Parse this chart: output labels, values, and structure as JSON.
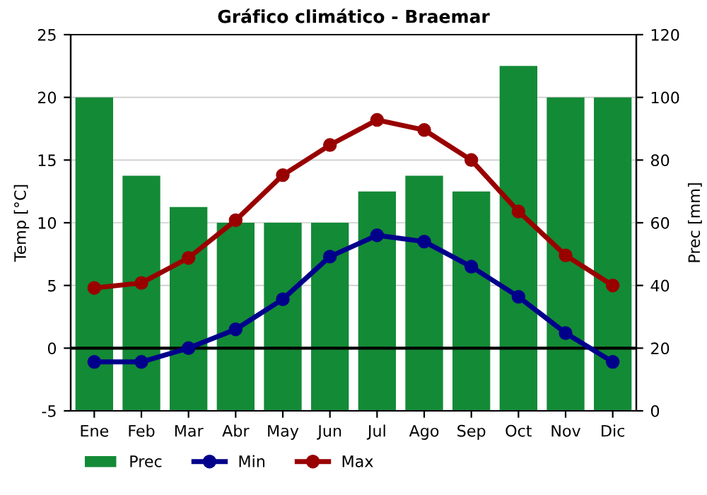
{
  "chart_data": {
    "type": "bar",
    "title": "Gráfico climático - Braemar",
    "ylabel": "Temp [°C]",
    "y2label": "Prec [mm]",
    "categories": [
      "Ene",
      "Feb",
      "Mar",
      "Abr",
      "May",
      "Jun",
      "Jul",
      "Ago",
      "Sep",
      "Oct",
      "Nov",
      "Dic"
    ],
    "series": [
      {
        "name": "Prec",
        "axis": "y2",
        "color": "#138a36",
        "values": [
          100,
          75,
          65,
          60,
          60,
          60,
          70,
          75,
          70,
          110,
          100,
          100
        ]
      },
      {
        "name": "Min",
        "type": "line",
        "color": "#00008b",
        "values": [
          -1.1,
          -1.1,
          0,
          1.5,
          3.9,
          7.3,
          9,
          8.5,
          6.5,
          4.1,
          1.2,
          -1.1
        ]
      },
      {
        "name": "Max",
        "type": "line",
        "color": "#990000",
        "values": [
          4.8,
          5.2,
          7.2,
          10.2,
          13.8,
          16.2,
          18.2,
          17.4,
          15,
          10.9,
          7.4,
          5.0
        ]
      }
    ],
    "ylim": [
      -5,
      25
    ],
    "yticks": [
      -5,
      0,
      5,
      10,
      15,
      20,
      25
    ],
    "y2lim": [
      0,
      120
    ],
    "y2ticks": [
      0,
      20,
      40,
      60,
      80,
      100,
      120
    ],
    "ref_lines": [
      {
        "axis": "y",
        "value": 0,
        "color": "#000000"
      }
    ],
    "grid": true,
    "legend": "bottom",
    "marker": "circle",
    "line_style": "solid"
  }
}
